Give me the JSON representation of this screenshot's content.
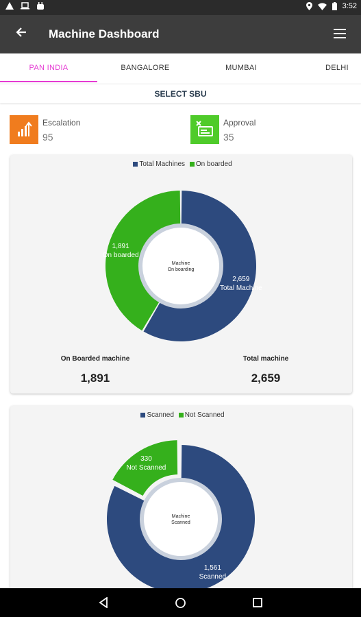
{
  "status_bar": {
    "time": "3:52"
  },
  "app_bar": {
    "title": "Machine Dashboard"
  },
  "tabs": [
    {
      "label": "PAN INDIA",
      "active": true
    },
    {
      "label": "BANGALORE",
      "active": false
    },
    {
      "label": "MUMBAI",
      "active": false
    },
    {
      "label": "DELHI",
      "active": false
    }
  ],
  "select_sbu": "SELECT SBU",
  "kpis": {
    "escalation": {
      "label": "Escalation",
      "value": "95",
      "color": "#f07c1e"
    },
    "approval": {
      "label": "Approval",
      "value": "35",
      "color": "#4fcb2a"
    }
  },
  "colors": {
    "total": "#2d4a7e",
    "onboard": "#35b01c",
    "accent": "#e53ad3"
  },
  "chart_onboarding": {
    "legend": [
      "Total Machines",
      "On boarded"
    ],
    "center": [
      "Machine",
      "On boarding"
    ],
    "slices": [
      {
        "name": "Total Machines",
        "value": 2659,
        "label_value": "2,659",
        "label_name": "Total Machine"
      },
      {
        "name": "On boarded",
        "value": 1891,
        "label_value": "1,891",
        "label_name": "On boarded"
      }
    ],
    "stats": [
      {
        "label": "On Boarded machine",
        "value": "1,891"
      },
      {
        "label": "Total machine",
        "value": "2,659"
      }
    ]
  },
  "chart_scanned": {
    "legend": [
      "Scanned",
      "Not Scanned"
    ],
    "center": [
      "Machine",
      "Scanned"
    ],
    "slices": [
      {
        "name": "Scanned",
        "value": 1561,
        "label_value": "1,561",
        "label_name": "Scanned"
      },
      {
        "name": "Not Scanned",
        "value": 330,
        "label_value": "330",
        "label_name": "Not Scanned"
      }
    ]
  },
  "chart_data": [
    {
      "type": "pie",
      "title": "",
      "categories": [
        "Total Machines",
        "On boarded"
      ],
      "values": [
        2659,
        1891
      ],
      "legend_position": "top"
    },
    {
      "type": "pie",
      "title": "",
      "categories": [
        "Scanned",
        "Not Scanned"
      ],
      "values": [
        1561,
        330
      ],
      "legend_position": "top"
    }
  ]
}
